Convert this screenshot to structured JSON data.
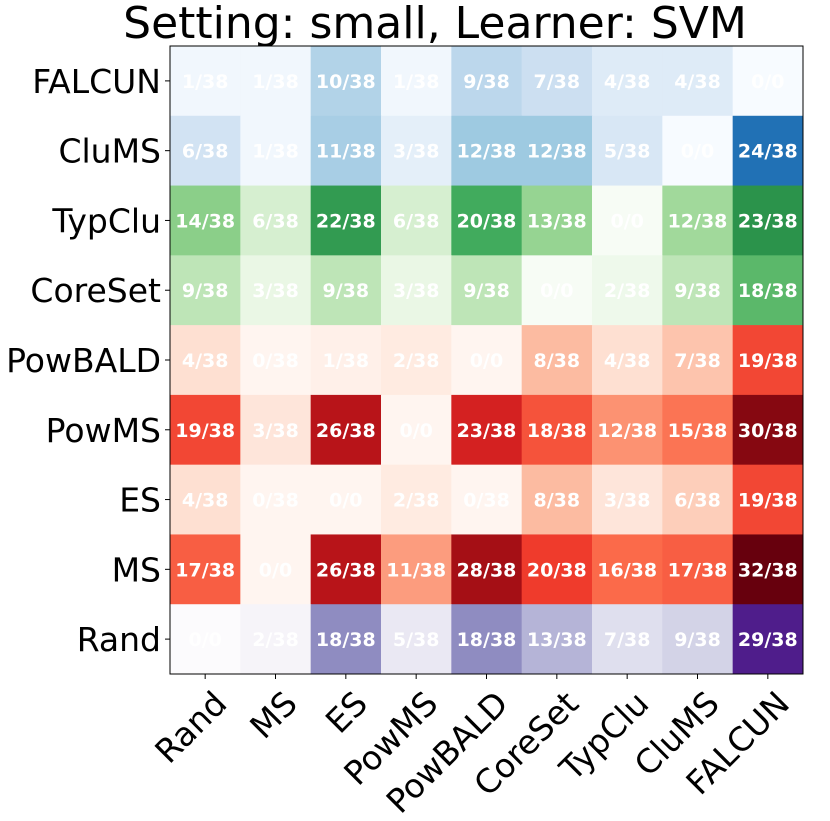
{
  "chart_data": {
    "type": "heatmap",
    "title": "Setting: small, Learner: SVM",
    "xlabel": "",
    "ylabel": "",
    "x_categories": [
      "Rand",
      "MS",
      "ES",
      "PowMS",
      "PowBALD",
      "CoreSet",
      "TypClu",
      "CluMS",
      "FALCUN"
    ],
    "y_categories": [
      "FALCUN",
      "CluMS",
      "TypClu",
      "CoreSet",
      "PowBALD",
      "PowMS",
      "ES",
      "MS",
      "Rand"
    ],
    "row_colormaps": {
      "FALCUN": "Blues",
      "CluMS": "Blues",
      "TypClu": "Greens",
      "CoreSet": "Greens",
      "PowBALD": "Reds",
      "PowMS": "Reds",
      "ES": "Reds",
      "MS": "Reds",
      "Rand": "Purples"
    },
    "labels": [
      [
        "1/38",
        "1/38",
        "10/38",
        "1/38",
        "9/38",
        "7/38",
        "4/38",
        "4/38",
        "0/0"
      ],
      [
        "6/38",
        "1/38",
        "11/38",
        "3/38",
        "12/38",
        "12/38",
        "5/38",
        "0/0",
        "24/38"
      ],
      [
        "14/38",
        "6/38",
        "22/38",
        "6/38",
        "20/38",
        "13/38",
        "0/0",
        "12/38",
        "23/38"
      ],
      [
        "9/38",
        "3/38",
        "9/38",
        "3/38",
        "9/38",
        "0/0",
        "2/38",
        "9/38",
        "18/38"
      ],
      [
        "4/38",
        "0/38",
        "1/38",
        "2/38",
        "0/0",
        "8/38",
        "4/38",
        "7/38",
        "19/38"
      ],
      [
        "19/38",
        "3/38",
        "26/38",
        "0/0",
        "23/38",
        "18/38",
        "12/38",
        "15/38",
        "30/38"
      ],
      [
        "4/38",
        "0/38",
        "0/0",
        "2/38",
        "0/38",
        "8/38",
        "3/38",
        "6/38",
        "19/38"
      ],
      [
        "17/38",
        "0/0",
        "26/38",
        "11/38",
        "28/38",
        "20/38",
        "16/38",
        "17/38",
        "32/38"
      ],
      [
        "0/0",
        "2/38",
        "18/38",
        "5/38",
        "18/38",
        "13/38",
        "7/38",
        "9/38",
        "29/38"
      ]
    ],
    "values": [
      [
        1,
        1,
        10,
        1,
        9,
        7,
        4,
        4,
        0
      ],
      [
        6,
        1,
        11,
        3,
        12,
        12,
        5,
        0,
        24
      ],
      [
        14,
        6,
        22,
        6,
        20,
        13,
        0,
        12,
        23
      ],
      [
        9,
        3,
        9,
        3,
        9,
        0,
        2,
        9,
        18
      ],
      [
        4,
        0,
        1,
        2,
        0,
        8,
        4,
        7,
        19
      ],
      [
        19,
        3,
        26,
        0,
        23,
        18,
        12,
        15,
        30
      ],
      [
        4,
        0,
        0,
        2,
        0,
        8,
        3,
        6,
        19
      ],
      [
        17,
        0,
        26,
        11,
        28,
        20,
        16,
        17,
        32
      ],
      [
        0,
        2,
        18,
        5,
        18,
        13,
        7,
        9,
        29
      ]
    ],
    "value_range": [
      0,
      32
    ],
    "colors": {
      "Blues": [
        "#f7fbff",
        "#deebf7",
        "#c6dbef",
        "#9ecae1",
        "#6baed6",
        "#4292c6",
        "#2171b5",
        "#08519c",
        "#08306b"
      ],
      "Greens": [
        "#f7fcf5",
        "#e5f5e0",
        "#c7e9c0",
        "#a1d99b",
        "#74c476",
        "#41ab5d",
        "#238b45",
        "#006d2c",
        "#00441b"
      ],
      "Reds": [
        "#fff5f0",
        "#fee0d2",
        "#fcbba1",
        "#fc9272",
        "#fb6a4a",
        "#ef3b2c",
        "#cb181d",
        "#a50f15",
        "#67000d"
      ],
      "Purples": [
        "#fcfbfd",
        "#efedf5",
        "#dadaeb",
        "#bcbddc",
        "#9e9ac8",
        "#807dba",
        "#6a51a3",
        "#54278f",
        "#3f007d"
      ]
    }
  }
}
